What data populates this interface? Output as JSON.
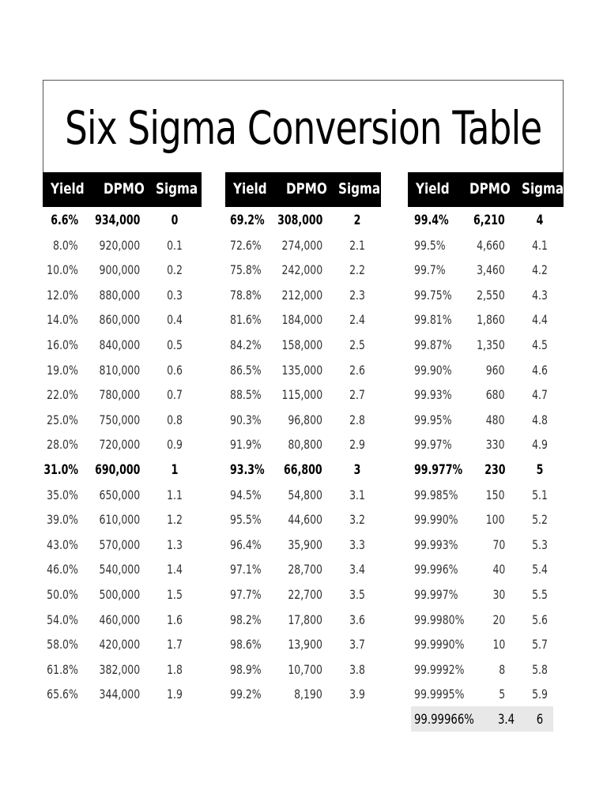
{
  "title": "Six Sigma Conversion Table",
  "headers": [
    "Yield",
    "DPMO",
    "Sigma"
  ],
  "colors": {
    "header_bg": "#000000",
    "header_text": "#ffffff",
    "highlight_bg": "#e8e8e8",
    "text": "#333333"
  },
  "groups": [
    {
      "rows": [
        {
          "yield": "6.6%",
          "dpmo": "934,000",
          "sigma": "0",
          "style": "bold"
        },
        {
          "yield": "8.0%",
          "dpmo": "920,000",
          "sigma": "0.1"
        },
        {
          "yield": "10.0%",
          "dpmo": "900,000",
          "sigma": "0.2"
        },
        {
          "yield": "12.0%",
          "dpmo": "880,000",
          "sigma": "0.3"
        },
        {
          "yield": "14.0%",
          "dpmo": "860,000",
          "sigma": "0.4"
        },
        {
          "yield": "16.0%",
          "dpmo": "840,000",
          "sigma": "0.5"
        },
        {
          "yield": "19.0%",
          "dpmo": "810,000",
          "sigma": "0.6"
        },
        {
          "yield": "22.0%",
          "dpmo": "780,000",
          "sigma": "0.7"
        },
        {
          "yield": "25.0%",
          "dpmo": "750,000",
          "sigma": "0.8"
        },
        {
          "yield": "28.0%",
          "dpmo": "720,000",
          "sigma": "0.9"
        },
        {
          "yield": "31.0%",
          "dpmo": "690,000",
          "sigma": "1",
          "style": "bold"
        },
        {
          "yield": "35.0%",
          "dpmo": "650,000",
          "sigma": "1.1"
        },
        {
          "yield": "39.0%",
          "dpmo": "610,000",
          "sigma": "1.2"
        },
        {
          "yield": "43.0%",
          "dpmo": "570,000",
          "sigma": "1.3"
        },
        {
          "yield": "46.0%",
          "dpmo": "540,000",
          "sigma": "1.4"
        },
        {
          "yield": "50.0%",
          "dpmo": "500,000",
          "sigma": "1.5"
        },
        {
          "yield": "54.0%",
          "dpmo": "460,000",
          "sigma": "1.6"
        },
        {
          "yield": "58.0%",
          "dpmo": "420,000",
          "sigma": "1.7"
        },
        {
          "yield": "61.8%",
          "dpmo": "382,000",
          "sigma": "1.8"
        },
        {
          "yield": "65.6%",
          "dpmo": "344,000",
          "sigma": "1.9"
        }
      ]
    },
    {
      "rows": [
        {
          "yield": "69.2%",
          "dpmo": "308,000",
          "sigma": "2",
          "style": "bold"
        },
        {
          "yield": "72.6%",
          "dpmo": "274,000",
          "sigma": "2.1"
        },
        {
          "yield": "75.8%",
          "dpmo": "242,000",
          "sigma": "2.2"
        },
        {
          "yield": "78.8%",
          "dpmo": "212,000",
          "sigma": "2.3"
        },
        {
          "yield": "81.6%",
          "dpmo": "184,000",
          "sigma": "2.4"
        },
        {
          "yield": "84.2%",
          "dpmo": "158,000",
          "sigma": "2.5"
        },
        {
          "yield": "86.5%",
          "dpmo": "135,000",
          "sigma": "2.6"
        },
        {
          "yield": "88.5%",
          "dpmo": "115,000",
          "sigma": "2.7"
        },
        {
          "yield": "90.3%",
          "dpmo": "96,800",
          "sigma": "2.8"
        },
        {
          "yield": "91.9%",
          "dpmo": "80,800",
          "sigma": "2.9"
        },
        {
          "yield": "93.3%",
          "dpmo": "66,800",
          "sigma": "3",
          "style": "bold"
        },
        {
          "yield": "94.5%",
          "dpmo": "54,800",
          "sigma": "3.1"
        },
        {
          "yield": "95.5%",
          "dpmo": "44,600",
          "sigma": "3.2"
        },
        {
          "yield": "96.4%",
          "dpmo": "35,900",
          "sigma": "3.3"
        },
        {
          "yield": "97.1%",
          "dpmo": "28,700",
          "sigma": "3.4"
        },
        {
          "yield": "97.7%",
          "dpmo": "22,700",
          "sigma": "3.5"
        },
        {
          "yield": "98.2%",
          "dpmo": "17,800",
          "sigma": "3.6"
        },
        {
          "yield": "98.6%",
          "dpmo": "13,900",
          "sigma": "3.7"
        },
        {
          "yield": "98.9%",
          "dpmo": "10,700",
          "sigma": "3.8"
        },
        {
          "yield": "99.2%",
          "dpmo": "8,190",
          "sigma": "3.9"
        }
      ]
    },
    {
      "rows": [
        {
          "yield": "99.4%",
          "dpmo": "6,210",
          "sigma": "4",
          "style": "bold"
        },
        {
          "yield": "99.5%",
          "dpmo": "4,660",
          "sigma": "4.1"
        },
        {
          "yield": "99.7%",
          "dpmo": "3,460",
          "sigma": "4.2"
        },
        {
          "yield": "99.75%",
          "dpmo": "2,550",
          "sigma": "4.3"
        },
        {
          "yield": "99.81%",
          "dpmo": "1,860",
          "sigma": "4.4"
        },
        {
          "yield": "99.87%",
          "dpmo": "1,350",
          "sigma": "4.5"
        },
        {
          "yield": "99.90%",
          "dpmo": "960",
          "sigma": "4.6"
        },
        {
          "yield": "99.93%",
          "dpmo": "680",
          "sigma": "4.7"
        },
        {
          "yield": "99.95%",
          "dpmo": "480",
          "sigma": "4.8"
        },
        {
          "yield": "99.97%",
          "dpmo": "330",
          "sigma": "4.9"
        },
        {
          "yield": "99.977%",
          "dpmo": "230",
          "sigma": "5",
          "style": "bold"
        },
        {
          "yield": "99.985%",
          "dpmo": "150",
          "sigma": "5.1"
        },
        {
          "yield": "99.990%",
          "dpmo": "100",
          "sigma": "5.2"
        },
        {
          "yield": "99.993%",
          "dpmo": "70",
          "sigma": "5.3"
        },
        {
          "yield": "99.996%",
          "dpmo": "40",
          "sigma": "5.4"
        },
        {
          "yield": "99.997%",
          "dpmo": "30",
          "sigma": "5.5"
        },
        {
          "yield": "99.9980%",
          "dpmo": "20",
          "sigma": "5.6"
        },
        {
          "yield": "99.9990%",
          "dpmo": "10",
          "sigma": "5.7"
        },
        {
          "yield": "99.9992%",
          "dpmo": "8",
          "sigma": "5.8"
        },
        {
          "yield": "99.9995%",
          "dpmo": "5",
          "sigma": "5.9"
        },
        {
          "yield": "99.99966%",
          "dpmo": "3.4",
          "sigma": "6",
          "style": "highlight"
        }
      ]
    }
  ]
}
